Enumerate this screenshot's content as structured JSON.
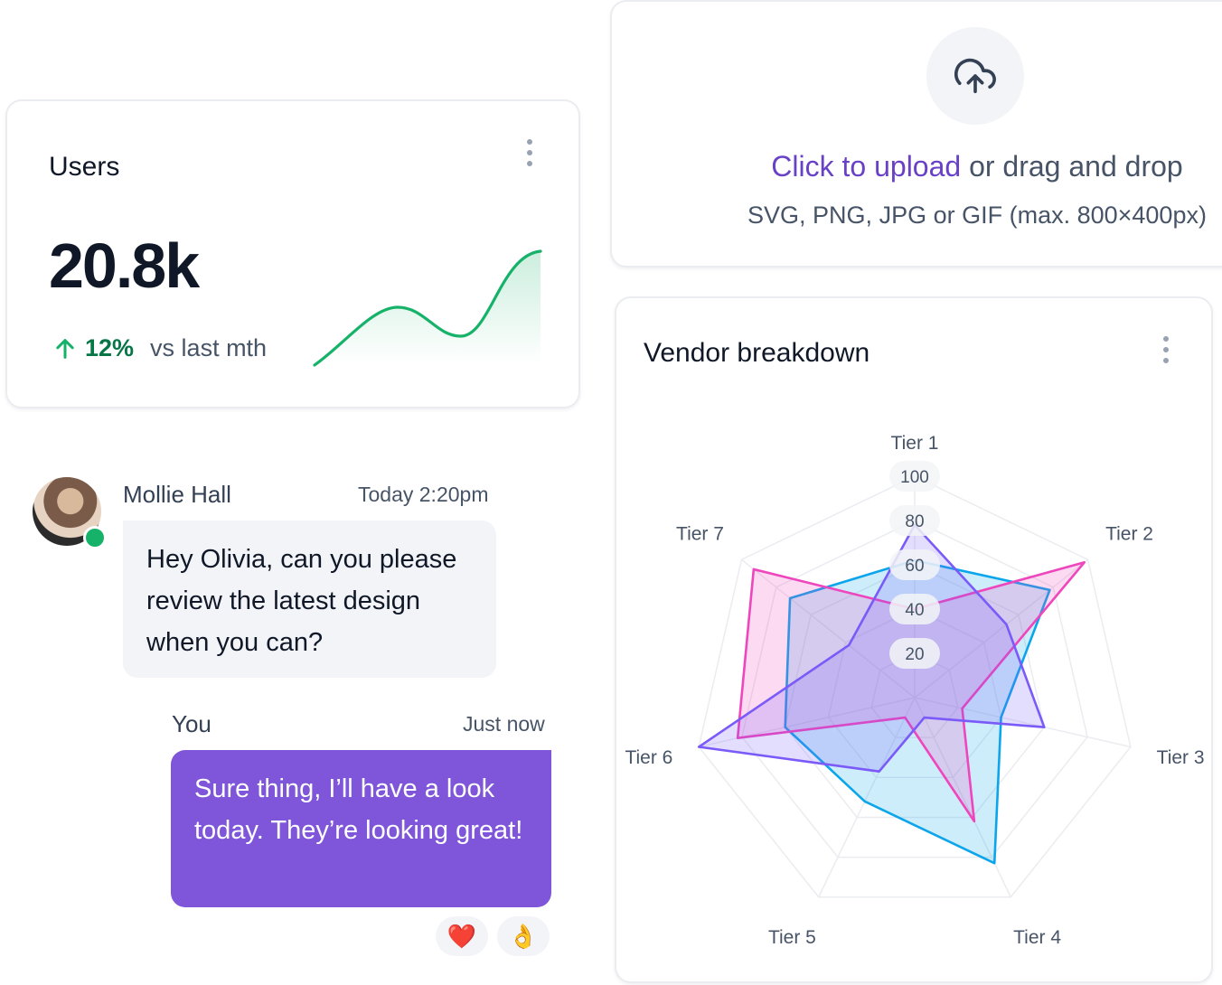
{
  "users_card": {
    "title": "Users",
    "value": "20.8k",
    "trend_pct": "12%",
    "trend_label": "vs last mth",
    "trend_icon": "arrow-up-icon",
    "menu_icon": "dots-vertical-icon",
    "accent": "#17b26a"
  },
  "upload": {
    "icon": "upload-cloud-icon",
    "link_text": "Click to upload",
    "rest_text": " or drag and drop",
    "hint": "SVG, PNG, JPG or GIF (max. 800×400px)"
  },
  "vendor": {
    "title": "Vendor breakdown",
    "menu_icon": "dots-vertical-icon"
  },
  "chat": {
    "incoming": {
      "name": "Mollie Hall",
      "time": "Today 2:20pm",
      "text": "Hey Olivia, can you please review the latest design when you can?"
    },
    "outgoing": {
      "name": "You",
      "time": "Just now",
      "text": "Sure thing, I’ll have a look today. They’re looking great!"
    },
    "reactions": [
      "❤️",
      "👌"
    ]
  },
  "chart_data": {
    "type": "radar",
    "categories": [
      "Tier 1",
      "Tier 2",
      "Tier 3",
      "Tier 4",
      "Tier 5",
      "Tier 6",
      "Tier 7"
    ],
    "ticks": [
      "20",
      "40",
      "60",
      "80",
      "100"
    ],
    "rlim": [
      0,
      100
    ],
    "series": [
      {
        "values": [
          62,
          78,
          40,
          83,
          52,
          60,
          72
        ],
        "color": "#0ba5ec"
      },
      {
        "values": [
          40,
          98,
          22,
          62,
          10,
          82,
          93
        ],
        "color": "#ee46bc"
      },
      {
        "values": [
          78,
          53,
          60,
          10,
          37,
          100,
          38
        ],
        "color": "#7a5af8"
      }
    ]
  }
}
